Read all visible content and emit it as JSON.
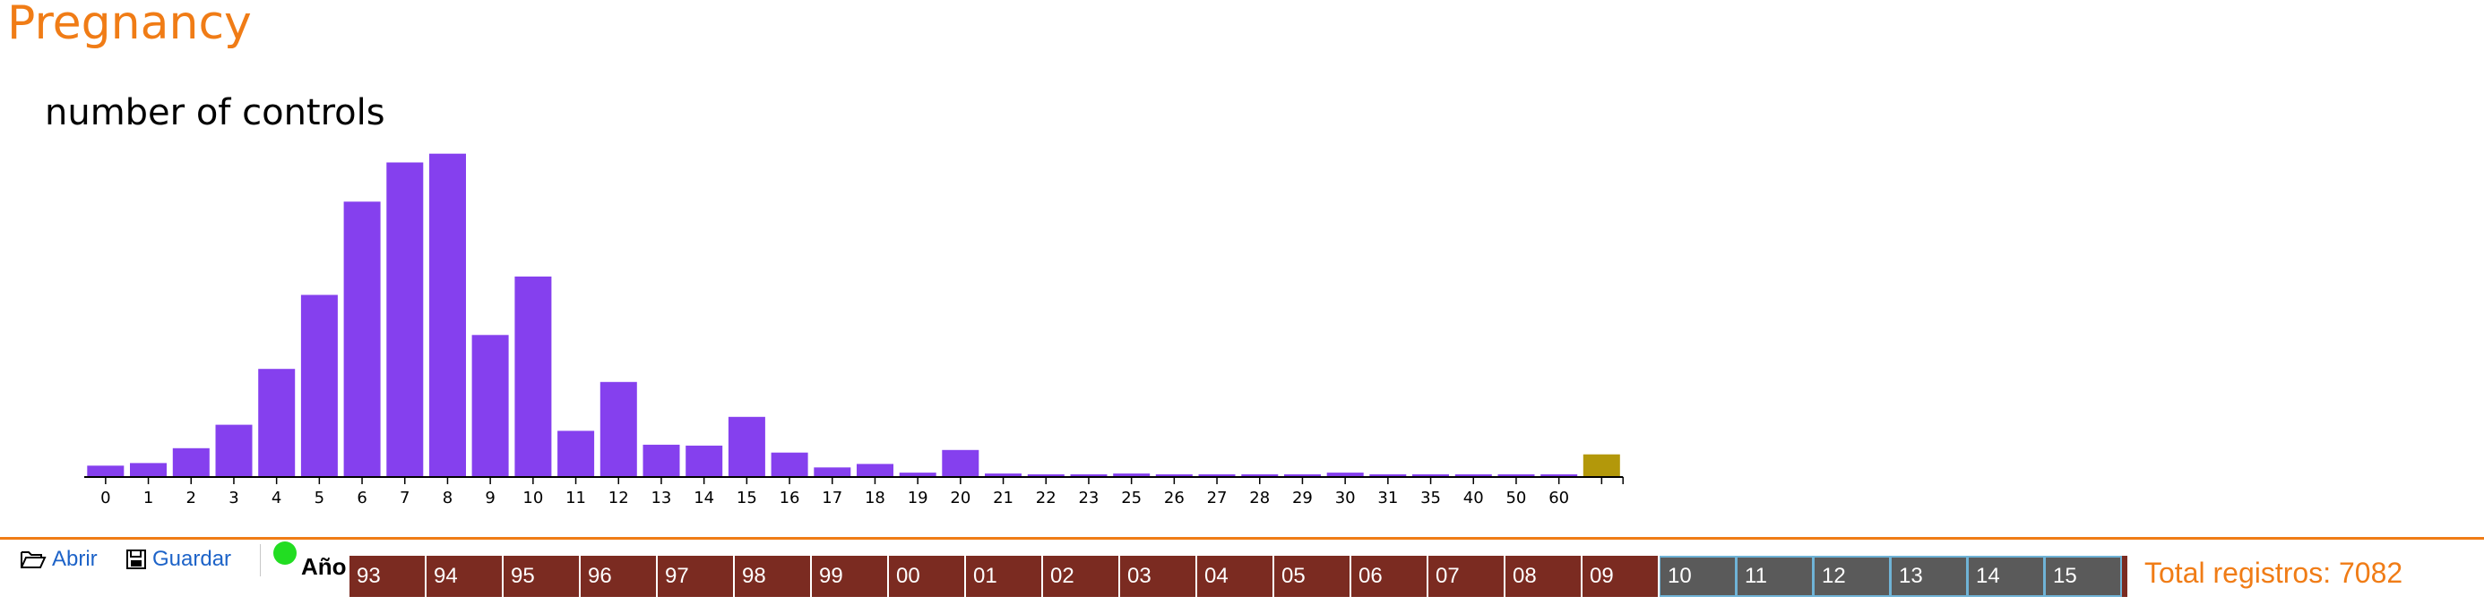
{
  "header": {
    "title": "Pregnancy"
  },
  "chart_data": {
    "type": "bar",
    "title": "number of controls",
    "categories": [
      "0",
      "1",
      "2",
      "3",
      "4",
      "5",
      "6",
      "7",
      "8",
      "9",
      "10",
      "11",
      "12",
      "13",
      "14",
      "15",
      "16",
      "17",
      "18",
      "19",
      "20",
      "21",
      "22",
      "23",
      "25",
      "26",
      "27",
      "28",
      "29",
      "30",
      "31",
      "35",
      "40",
      "50",
      "60",
      ""
    ],
    "values": [
      120,
      150,
      320,
      590,
      1230,
      2080,
      3150,
      3600,
      3700,
      1620,
      2290,
      520,
      1080,
      360,
      350,
      680,
      270,
      100,
      140,
      40,
      300,
      30,
      20,
      5,
      30,
      5,
      5,
      5,
      5,
      40,
      5,
      5,
      10,
      5,
      5,
      250
    ],
    "colors": {
      "bar": "#8540ee",
      "last_bar": "#b3980a",
      "axis": "#000000"
    },
    "ylim": [
      0,
      3800
    ],
    "grid": false,
    "legend": "none"
  },
  "toolbar": {
    "open_label": "Abrir",
    "save_label": "Guardar",
    "year_label": "Año",
    "years": [
      "93",
      "94",
      "95",
      "96",
      "97",
      "98",
      "99",
      "00",
      "01",
      "02",
      "03",
      "04",
      "05",
      "06",
      "07",
      "08",
      "09",
      "10",
      "11",
      "12",
      "13",
      "14",
      "15"
    ],
    "selected_years": [
      "10",
      "11",
      "12",
      "13",
      "14",
      "15"
    ],
    "total_label": "Total registros: 7082"
  }
}
